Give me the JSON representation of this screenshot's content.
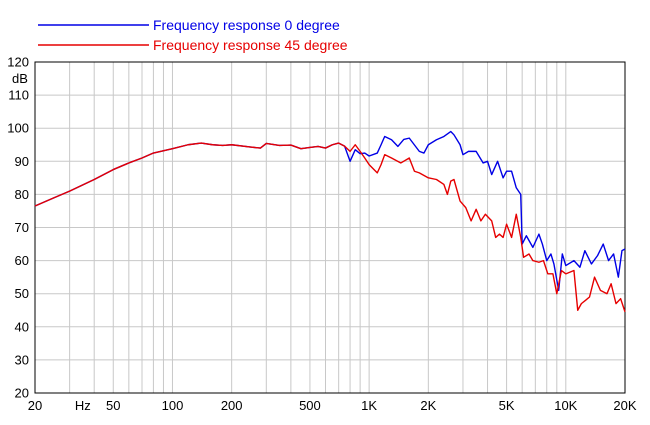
{
  "chart_data": {
    "type": "line",
    "title": "",
    "xlabel": "",
    "ylabel": "dB",
    "x_scale": "log",
    "xlim": [
      20,
      20000
    ],
    "ylim": [
      20,
      120
    ],
    "grid": true,
    "legend_position": "top-left",
    "x_ticks": [
      {
        "value": 20,
        "label": "20"
      },
      {
        "value": 35,
        "label": "Hz"
      },
      {
        "value": 50,
        "label": "50"
      },
      {
        "value": 100,
        "label": "100"
      },
      {
        "value": 200,
        "label": "200"
      },
      {
        "value": 500,
        "label": "500"
      },
      {
        "value": 1000,
        "label": "1K"
      },
      {
        "value": 2000,
        "label": "2K"
      },
      {
        "value": 5000,
        "label": "5K"
      },
      {
        "value": 10000,
        "label": "10K"
      },
      {
        "value": 20000,
        "label": "20K"
      }
    ],
    "y_ticks": [
      20,
      30,
      40,
      50,
      60,
      70,
      80,
      90,
      100,
      110,
      120
    ],
    "series": [
      {
        "name": "Frequency response 0 degree",
        "color": "#0000e6",
        "points": [
          [
            20,
            76.5
          ],
          [
            25,
            79
          ],
          [
            30,
            81
          ],
          [
            40,
            84.5
          ],
          [
            50,
            87.5
          ],
          [
            60,
            89.5
          ],
          [
            70,
            91
          ],
          [
            80,
            92.5
          ],
          [
            100,
            93.8
          ],
          [
            120,
            95
          ],
          [
            140,
            95.5
          ],
          [
            160,
            95
          ],
          [
            180,
            94.8
          ],
          [
            200,
            95
          ],
          [
            250,
            94.3
          ],
          [
            280,
            94
          ],
          [
            300,
            95.4
          ],
          [
            350,
            94.8
          ],
          [
            400,
            94.9
          ],
          [
            450,
            93.8
          ],
          [
            500,
            94.2
          ],
          [
            550,
            94.5
          ],
          [
            600,
            94
          ],
          [
            650,
            95
          ],
          [
            700,
            95.5
          ],
          [
            750,
            94.6
          ],
          [
            800,
            90
          ],
          [
            850,
            93.5
          ],
          [
            900,
            92.3
          ],
          [
            950,
            92.5
          ],
          [
            1000,
            91.6
          ],
          [
            1100,
            92.5
          ],
          [
            1150,
            95
          ],
          [
            1200,
            97.5
          ],
          [
            1300,
            96.5
          ],
          [
            1400,
            94.5
          ],
          [
            1500,
            96.6
          ],
          [
            1600,
            97
          ],
          [
            1800,
            93
          ],
          [
            1900,
            92.5
          ],
          [
            2000,
            95
          ],
          [
            2200,
            96.5
          ],
          [
            2400,
            97.5
          ],
          [
            2600,
            99
          ],
          [
            2700,
            98
          ],
          [
            2900,
            95
          ],
          [
            3000,
            92
          ],
          [
            3200,
            93
          ],
          [
            3500,
            93
          ],
          [
            3800,
            89.5
          ],
          [
            4000,
            90
          ],
          [
            4200,
            86
          ],
          [
            4500,
            90
          ],
          [
            4800,
            85
          ],
          [
            5000,
            87
          ],
          [
            5300,
            87
          ],
          [
            5600,
            82
          ],
          [
            5900,
            80
          ],
          [
            6000,
            65
          ],
          [
            6300,
            67.5
          ],
          [
            6800,
            64
          ],
          [
            7300,
            68
          ],
          [
            7600,
            65
          ],
          [
            8000,
            60
          ],
          [
            8400,
            62
          ],
          [
            8700,
            59
          ],
          [
            9200,
            51
          ],
          [
            9600,
            62
          ],
          [
            10000,
            58.5
          ],
          [
            11000,
            60
          ],
          [
            11800,
            58
          ],
          [
            12500,
            63
          ],
          [
            13500,
            59
          ],
          [
            14500,
            61.5
          ],
          [
            15500,
            65
          ],
          [
            16500,
            60
          ],
          [
            17500,
            62
          ],
          [
            18500,
            55
          ],
          [
            19300,
            63
          ],
          [
            20000,
            63.5
          ]
        ]
      },
      {
        "name": "Frequency response 45 degree",
        "color": "#e60000",
        "points": [
          [
            20,
            76.5
          ],
          [
            25,
            79
          ],
          [
            30,
            81
          ],
          [
            40,
            84.5
          ],
          [
            50,
            87.5
          ],
          [
            60,
            89.5
          ],
          [
            70,
            91
          ],
          [
            80,
            92.5
          ],
          [
            100,
            93.8
          ],
          [
            120,
            95
          ],
          [
            140,
            95.5
          ],
          [
            160,
            95
          ],
          [
            180,
            94.8
          ],
          [
            200,
            95
          ],
          [
            250,
            94.3
          ],
          [
            280,
            94
          ],
          [
            300,
            95.4
          ],
          [
            350,
            94.8
          ],
          [
            400,
            94.9
          ],
          [
            450,
            93.8
          ],
          [
            500,
            94.2
          ],
          [
            550,
            94.5
          ],
          [
            600,
            94
          ],
          [
            650,
            95
          ],
          [
            700,
            95.5
          ],
          [
            750,
            94.6
          ],
          [
            800,
            93
          ],
          [
            850,
            95
          ],
          [
            900,
            93
          ],
          [
            950,
            91
          ],
          [
            1000,
            89
          ],
          [
            1100,
            86.5
          ],
          [
            1150,
            89
          ],
          [
            1200,
            92
          ],
          [
            1300,
            91
          ],
          [
            1450,
            89.5
          ],
          [
            1600,
            91
          ],
          [
            1700,
            87
          ],
          [
            1800,
            86.5
          ],
          [
            2000,
            85
          ],
          [
            2200,
            84.5
          ],
          [
            2400,
            83
          ],
          [
            2500,
            80
          ],
          [
            2600,
            84
          ],
          [
            2700,
            84.5
          ],
          [
            2900,
            78
          ],
          [
            3100,
            76
          ],
          [
            3300,
            72
          ],
          [
            3500,
            75.5
          ],
          [
            3700,
            72
          ],
          [
            3900,
            74
          ],
          [
            4200,
            72
          ],
          [
            4400,
            67
          ],
          [
            4600,
            68
          ],
          [
            4800,
            67
          ],
          [
            5000,
            71
          ],
          [
            5300,
            67
          ],
          [
            5600,
            74
          ],
          [
            5900,
            67
          ],
          [
            6100,
            61
          ],
          [
            6500,
            62
          ],
          [
            6800,
            60
          ],
          [
            7300,
            59.5
          ],
          [
            7700,
            60
          ],
          [
            8100,
            56
          ],
          [
            8600,
            56
          ],
          [
            9000,
            50
          ],
          [
            9500,
            57
          ],
          [
            10000,
            56
          ],
          [
            11000,
            57
          ],
          [
            11500,
            45
          ],
          [
            12000,
            47
          ],
          [
            12600,
            48
          ],
          [
            13200,
            49
          ],
          [
            14000,
            55
          ],
          [
            15000,
            51
          ],
          [
            16200,
            50
          ],
          [
            17000,
            53
          ],
          [
            18000,
            47
          ],
          [
            19000,
            48.5
          ],
          [
            20000,
            44.5
          ]
        ]
      }
    ]
  }
}
